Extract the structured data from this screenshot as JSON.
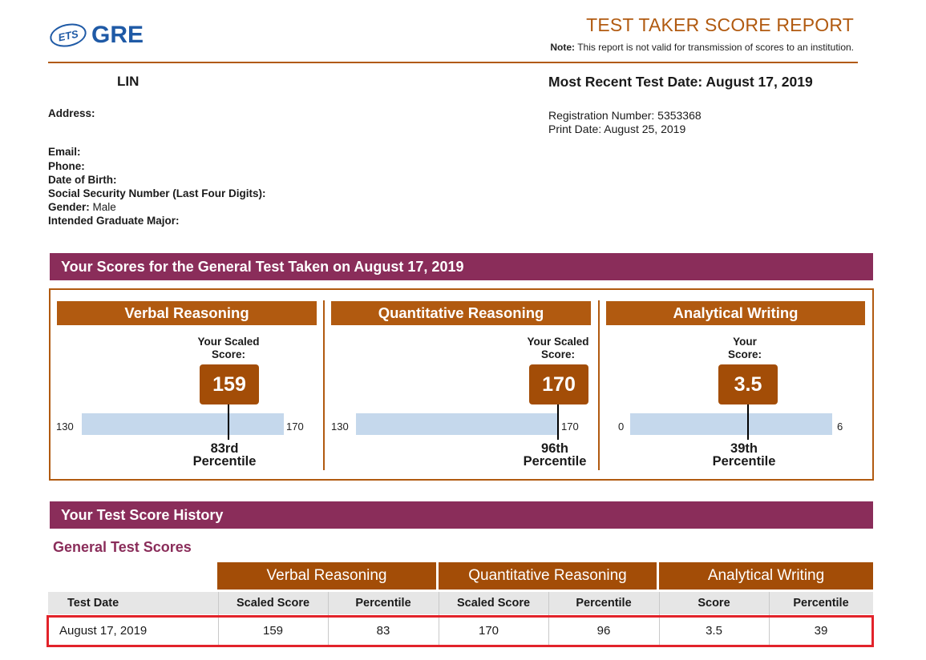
{
  "header": {
    "logo_ets": "ETS",
    "logo_gre": "GRE",
    "report_title": "TEST TAKER SCORE REPORT",
    "note_label": "Note:",
    "note_text": "This report is not valid for transmission of scores to an institution."
  },
  "taker": {
    "name": "LIN",
    "address_label": "Address:",
    "email_label": "Email:",
    "phone_label": "Phone:",
    "dob_label": "Date of Birth:",
    "ssn_label": "Social Security Number (Last Four Digits):",
    "gender_label": "Gender:",
    "gender_value": "Male",
    "major_label": "Intended Graduate Major:"
  },
  "test_info": {
    "recent_label": "Most Recent Test Date: August 17, 2019",
    "registration": "Registration Number: 5353368",
    "print_date": "Print Date: August 25, 2019"
  },
  "scores_section": {
    "title": "Your Scores for the General Test Taken on August 17, 2019",
    "columns": [
      {
        "name": "Verbal Reasoning",
        "label_line1": "Your Scaled",
        "label_line2": "Score:",
        "score": "159",
        "min": "130",
        "max": "170",
        "score_value": 159,
        "range": [
          130,
          170
        ],
        "pct_line1": "83rd",
        "pct_line2": "Percentile"
      },
      {
        "name": "Quantitative Reasoning",
        "label_line1": "Your Scaled",
        "label_line2": "Score:",
        "score": "170",
        "min": "130",
        "max": "170",
        "score_value": 170,
        "range": [
          130,
          170
        ],
        "pct_line1": "96th",
        "pct_line2": "Percentile"
      },
      {
        "name": "Analytical Writing",
        "label_line1": "Your",
        "label_line2": "Score:",
        "score": "3.5",
        "min": "0",
        "max": "6",
        "score_value": 3.5,
        "range": [
          0,
          6
        ],
        "pct_line1": "39th",
        "pct_line2": "Percentile"
      }
    ]
  },
  "history": {
    "title": "Your Test Score History",
    "subtitle": "General Test Scores",
    "groups": [
      "Verbal Reasoning",
      "Quantitative Reasoning",
      "Analytical Writing"
    ],
    "headers": [
      "Test Date",
      "Scaled Score",
      "Percentile",
      "Scaled Score",
      "Percentile",
      "Score",
      "Percentile"
    ],
    "rows": [
      [
        "August 17, 2019",
        "159",
        "83",
        "170",
        "96",
        "3.5",
        "39"
      ]
    ]
  },
  "colors": {
    "brand_blue": "#1f5aa6",
    "accent_orange": "#b15a10",
    "section_purple": "#8a2d5a",
    "bar_blue": "#c5d8ec",
    "highlight_red": "#e2232a"
  }
}
